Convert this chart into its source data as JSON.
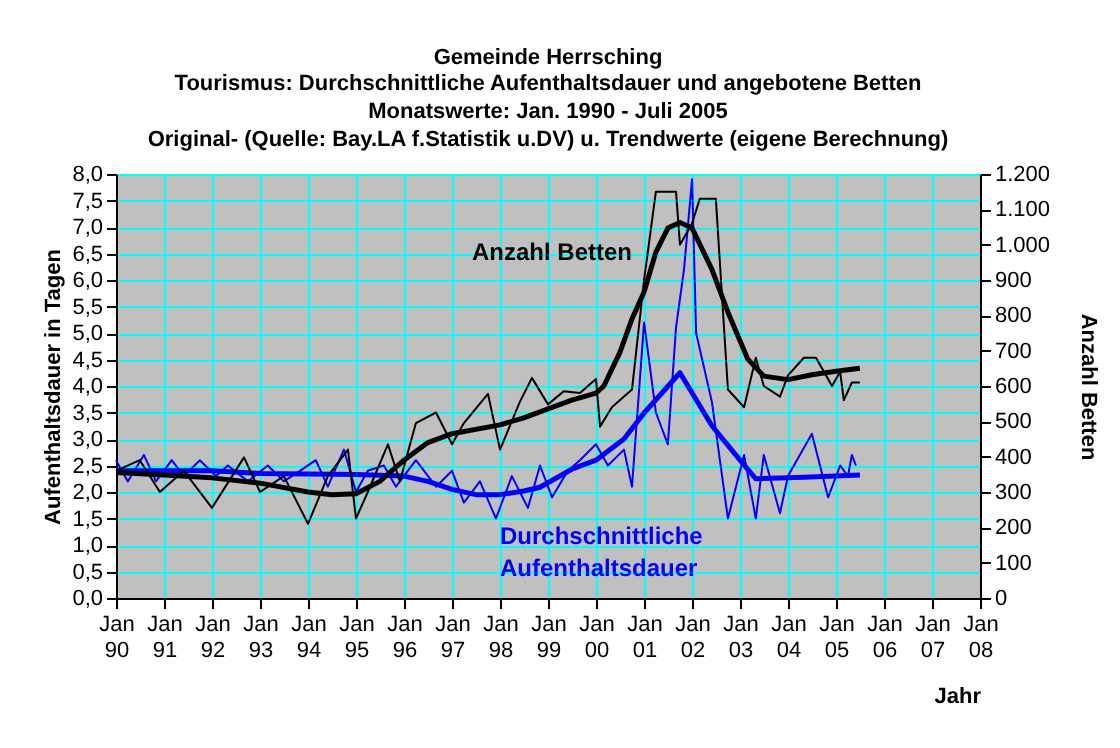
{
  "chart_data": {
    "type": "line",
    "title": "Gemeinde Herrsching",
    "subtitle": "Tourismus: Durchschnittliche Aufenthaltsdauer und angebotene Betten\nMonatswerte: Jan. 1990 - Juli 2005\nOriginal- (Quelle: Bay.LA f.Statistik u.DV) u. Trendwerte (eigene Berechnung)",
    "xlabel": "Jahr",
    "ylabel": "Aufenthaltsdauer in Tagen",
    "y2label": "Anzahl Betten",
    "series": [
      {
        "color": "#000000",
        "axis": "y2",
        "x": [
          "1990-01",
          "1990-07",
          "1990-12",
          "1991-06",
          "1992-01",
          "1992-09",
          "1993-01",
          "1993-07",
          "1994-01",
          "1994-06",
          "1994-11",
          "1995-01",
          "1995-04",
          "1995-09",
          "1995-12",
          "1996-04",
          "1996-09",
          "1997-01",
          "1997-04",
          "1997-10",
          "1998-01",
          "1998-06",
          "1998-09",
          "1999-01",
          "1999-05",
          "1999-09",
          "2000-01",
          "2000-02",
          "2000-05",
          "2000-10",
          "2001-01",
          "2001-04",
          "2001-09",
          "2001-10",
          "2002-01",
          "2002-03",
          "2002-07",
          "2002-10",
          "2003-02",
          "2003-05",
          "2003-07",
          "2003-11",
          "2004-01",
          "2004-05",
          "2004-08",
          "2004-12",
          "2005-02",
          "2005-03",
          "2005-05",
          "2005-07"
        ],
        "values": [
          360,
          390,
          300,
          360,
          255,
          398,
          300,
          345,
          210,
          345,
          420,
          225,
          300,
          435,
          330,
          495,
          525,
          435,
          495,
          578,
          420,
          555,
          623,
          548,
          585,
          580,
          620,
          485,
          540,
          590,
          900,
          1150,
          1150,
          1000,
          1060,
          1130,
          1130,
          590,
          540,
          680,
          600,
          570,
          630,
          680,
          680,
          600,
          640,
          560,
          610,
          610
        ]
      },
      {
        "name": "Anzahl Betten",
        "color": "#000000",
        "axis": "y2",
        "x": [
          "1990-01",
          "1991-01",
          "1992-01",
          "1993-01",
          "1994-01",
          "1994-07",
          "1995-01",
          "1995-07",
          "1996-01",
          "1996-07",
          "1997-01",
          "1998-01",
          "1998-07",
          "1999-01",
          "1999-07",
          "2000-01",
          "2000-03",
          "2000-07",
          "2000-10",
          "2001-01",
          "2001-04",
          "2001-07",
          "2001-10",
          "2002-01",
          "2002-06",
          "2002-10",
          "2003-03",
          "2003-07",
          "2004-01",
          "2004-07",
          "2005-01",
          "2005-07"
        ],
        "values": [
          355,
          348,
          340,
          325,
          300,
          292,
          295,
          330,
          390,
          440,
          465,
          490,
          510,
          535,
          560,
          580,
          600,
          695,
          790,
          866,
          979,
          1047,
          1063,
          1047,
          930,
          809,
          676,
          628,
          618,
          632,
          642,
          650
        ]
      },
      {
        "color": "#0000ff",
        "axis": "y",
        "x": [
          "1990-01",
          "1990-04",
          "1990-08",
          "1990-11",
          "1991-03",
          "1991-06",
          "1991-10",
          "1992-02",
          "1992-05",
          "1992-10",
          "1993-03",
          "1993-07",
          "1993-11",
          "1994-03",
          "1994-06",
          "1994-10",
          "1995-01",
          "1995-04",
          "1995-08",
          "1995-11",
          "1996-04",
          "1996-09",
          "1997-01",
          "1997-04",
          "1997-08",
          "1997-12",
          "1998-04",
          "1998-08",
          "1998-11",
          "1999-02",
          "1999-06",
          "1999-09",
          "2000-01",
          "2000-04",
          "2000-08",
          "2000-10",
          "2001-01",
          "2001-04",
          "2001-07",
          "2001-09",
          "2001-11",
          "2002-01",
          "2002-02",
          "2002-06",
          "2002-10",
          "2003-02",
          "2003-05",
          "2003-07",
          "2003-11",
          "2004-01",
          "2004-07",
          "2004-11",
          "2005-02",
          "2005-04",
          "2005-05",
          "2005-06"
        ],
        "values": [
          2.6,
          2.2,
          2.7,
          2.2,
          2.6,
          2.3,
          2.6,
          2.3,
          2.5,
          2.2,
          2.5,
          2.2,
          2.4,
          2.6,
          2.1,
          2.8,
          2.0,
          2.4,
          2.5,
          2.1,
          2.6,
          2.1,
          2.4,
          1.8,
          2.2,
          1.5,
          2.3,
          1.7,
          2.5,
          1.9,
          2.4,
          2.6,
          2.9,
          2.5,
          2.8,
          2.1,
          5.2,
          3.5,
          2.9,
          5.1,
          6.2,
          7.9,
          5.0,
          3.7,
          1.5,
          2.7,
          1.5,
          2.7,
          1.6,
          2.3,
          3.1,
          1.9,
          2.5,
          2.3,
          2.7,
          2.5
        ]
      },
      {
        "name": "Durchschnittliche Aufenthaltsdauer",
        "color": "#0000ff",
        "axis": "y",
        "x": [
          "1990-01",
          "1992-01",
          "1993-01",
          "1995-01",
          "1996-01",
          "1996-07",
          "1997-01",
          "1997-07",
          "1998-01",
          "1998-07",
          "1998-11",
          "1999-07",
          "2000-01",
          "2000-08",
          "2001-01",
          "2001-10",
          "2002-06",
          "2003-01",
          "2003-05",
          "2004-05",
          "2005-07"
        ],
        "values": [
          2.4,
          2.4,
          2.35,
          2.33,
          2.3,
          2.2,
          2.05,
          1.95,
          1.95,
          2.02,
          2.09,
          2.43,
          2.6,
          3.0,
          3.49,
          4.25,
          3.25,
          2.6,
          2.25,
          2.28,
          2.32
        ]
      }
    ],
    "xlim": [
      "1990-01",
      "2008-01"
    ],
    "xticks": [
      {
        "value": "1990-01",
        "label": "Jan 90"
      },
      {
        "value": "1991-01",
        "label": "Jan 91"
      },
      {
        "value": "1992-01",
        "label": "Jan 92"
      },
      {
        "value": "1993-01",
        "label": "Jan 93"
      },
      {
        "value": "1994-01",
        "label": "Jan 94"
      },
      {
        "value": "1995-01",
        "label": "Jan 95"
      },
      {
        "value": "1996-01",
        "label": "Jan 96"
      },
      {
        "value": "1997-01",
        "label": "Jan 97"
      },
      {
        "value": "1998-01",
        "label": "Jan 98"
      },
      {
        "value": "1999-01",
        "label": "Jan 99"
      },
      {
        "value": "2000-01",
        "label": "Jan 00"
      },
      {
        "value": "2001-01",
        "label": "Jan 01"
      },
      {
        "value": "2002-01",
        "label": "Jan 02"
      },
      {
        "value": "2003-01",
        "label": "Jan 03"
      },
      {
        "value": "2004-01",
        "label": "Jan 04"
      },
      {
        "value": "2005-01",
        "label": "Jan 05"
      },
      {
        "value": "2006-01",
        "label": "Jan 06"
      },
      {
        "value": "2007-01",
        "label": "Jan 07"
      },
      {
        "value": "2008-01",
        "label": "Jan 08"
      }
    ],
    "ylim": [
      0,
      8
    ],
    "yticks": [
      {
        "value": 0,
        "label": "0,0"
      },
      {
        "value": 0.5,
        "label": "0,5"
      },
      {
        "value": 1,
        "label": "1,0"
      },
      {
        "value": 1.5,
        "label": "1,5"
      },
      {
        "value": 2,
        "label": "2,0"
      },
      {
        "value": 2.5,
        "label": "2,5"
      },
      {
        "value": 3,
        "label": "3,0"
      },
      {
        "value": 3.5,
        "label": "3,5"
      },
      {
        "value": 4,
        "label": "4,0"
      },
      {
        "value": 4.5,
        "label": "4,5"
      },
      {
        "value": 5,
        "label": "5,0"
      },
      {
        "value": 5.5,
        "label": "5,5"
      },
      {
        "value": 6,
        "label": "6,0"
      },
      {
        "value": 6.5,
        "label": "6,5"
      },
      {
        "value": 7,
        "label": "7,0"
      },
      {
        "value": 7.5,
        "label": "7,5"
      },
      {
        "value": 8,
        "label": "8,0"
      }
    ],
    "y2lim": [
      0,
      1200
    ],
    "y2ticks": [
      0,
      100,
      200,
      300,
      400,
      500,
      600,
      700,
      800,
      900,
      {
        "value": 1000,
        "label": "1.000"
      },
      {
        "value": 1100,
        "label": "1.100"
      },
      {
        "value": 1200,
        "label": "1.200"
      }
    ],
    "grid": true,
    "marker": "none",
    "line_style": "solid"
  }
}
